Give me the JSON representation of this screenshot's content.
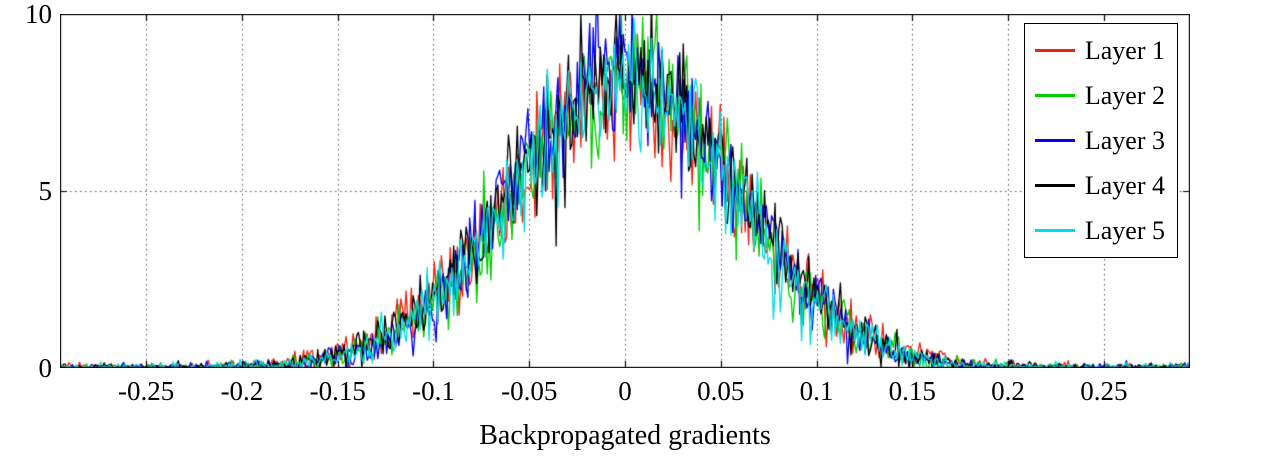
{
  "chart_data": {
    "type": "line",
    "title": "",
    "xlabel": "Backpropagated gradients",
    "ylabel": "",
    "xlim": [
      -0.295,
      0.295
    ],
    "ylim": [
      0,
      10
    ],
    "xticks": [
      -0.25,
      -0.2,
      -0.15,
      -0.1,
      -0.05,
      0,
      0.05,
      0.1,
      0.15,
      0.2,
      0.25
    ],
    "xtick_labels": [
      "-0.25",
      "-0.2",
      "-0.15",
      "-0.1",
      "-0.05",
      "0",
      "0.05",
      "0.1",
      "0.15",
      "0.2",
      "0.25"
    ],
    "yticks": [
      0,
      5,
      10
    ],
    "ytick_labels": [
      "0",
      "5",
      "10"
    ],
    "grid": "dotted",
    "grid_color": "#5a5a5a",
    "axis_color": "#000000",
    "background_color": "#ffffff",
    "legend_position": "top-right",
    "envelope_x": [
      -0.25,
      -0.2,
      -0.15,
      -0.1,
      -0.05,
      0,
      0.05,
      0.1,
      0.15,
      0.2,
      0.25
    ],
    "envelope_y_mean": [
      0.0,
      0.03,
      0.35,
      2.0,
      5.65,
      8.0,
      5.65,
      2.0,
      0.35,
      0.03,
      0.0
    ],
    "series": [
      {
        "name": "Layer 1",
        "color": "#ee2211",
        "peak": 7.9,
        "sigma": 0.062,
        "noise": 0.35,
        "seed": 101
      },
      {
        "name": "Layer 2",
        "color": "#00cc00",
        "peak": 8.1,
        "sigma": 0.059,
        "noise": 0.35,
        "seed": 202
      },
      {
        "name": "Layer 3",
        "color": "#0000ee",
        "peak": 8.4,
        "sigma": 0.058,
        "noise": 0.35,
        "seed": 303
      },
      {
        "name": "Layer 4",
        "color": "#000000",
        "peak": 8.3,
        "sigma": 0.06,
        "noise": 0.35,
        "seed": 404
      },
      {
        "name": "Layer 5",
        "color": "#00dde0",
        "peak": 8.0,
        "sigma": 0.059,
        "noise": 0.35,
        "seed": 505
      }
    ]
  }
}
